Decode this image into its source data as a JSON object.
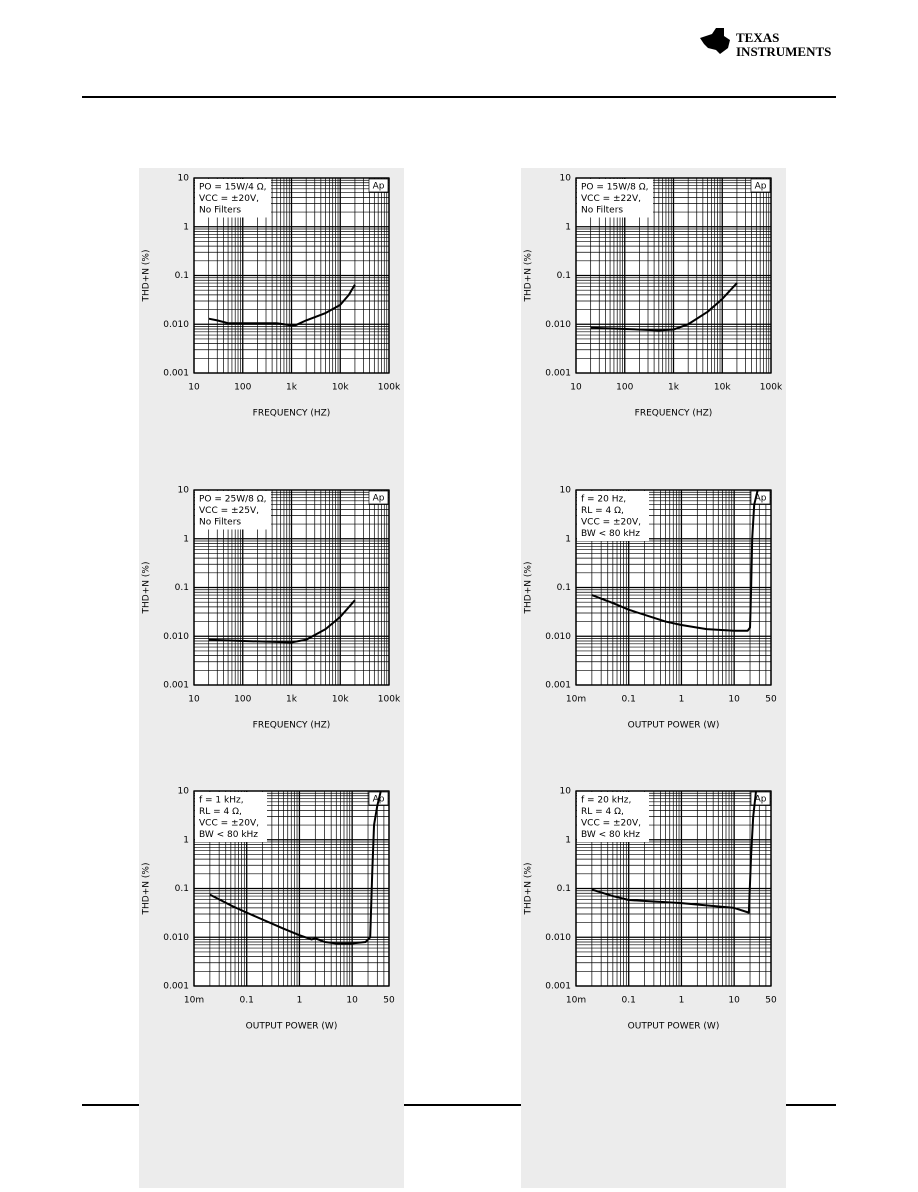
{
  "header": {
    "logo_line1": "Texas",
    "logo_line2": "Instruments"
  },
  "chart_data": [
    {
      "type": "line",
      "xlabel": "FREQUENCY (HZ)",
      "ylabel": "THD+N (%)",
      "log_x": true,
      "log_y": true,
      "grid": true,
      "minor_grid": true,
      "annotation": [
        "PO = 15W/4 Ω,",
        "VCC = ±20V,",
        "No Filters"
      ],
      "corner_label": "Ap",
      "xlim": [
        10,
        100000
      ],
      "ylim": [
        0.001,
        10
      ],
      "xticks": [
        10,
        100,
        {
          "value": 1000,
          "label": "1k"
        },
        {
          "value": 10000,
          "label": "10k"
        },
        {
          "value": 100000,
          "label": "100k"
        }
      ],
      "yticks": [
        0.001,
        {
          "value": 0.01,
          "label": "0.010"
        },
        0.1,
        1,
        10
      ],
      "series": [
        {
          "color": "#000000",
          "x": [
            20,
            30,
            50,
            100,
            200,
            500,
            1000,
            1200,
            2000,
            5000,
            10000,
            15000,
            20000
          ],
          "values": [
            0.013,
            0.012,
            0.0105,
            0.0105,
            0.0105,
            0.0105,
            0.0095,
            0.0095,
            0.012,
            0.017,
            0.025,
            0.04,
            0.065
          ]
        }
      ]
    },
    {
      "type": "line",
      "xlabel": "FREQUENCY (HZ)",
      "ylabel": "THD+N (%)",
      "log_x": true,
      "log_y": true,
      "grid": true,
      "minor_grid": true,
      "annotation": [
        "PO = 15W/8 Ω,",
        "VCC = ±22V,",
        "No Filters"
      ],
      "corner_label": "Ap",
      "xlim": [
        10,
        100000
      ],
      "ylim": [
        0.001,
        10
      ],
      "xticks": [
        10,
        100,
        {
          "value": 1000,
          "label": "1k"
        },
        {
          "value": 10000,
          "label": "10k"
        },
        {
          "value": 100000,
          "label": "100k"
        }
      ],
      "yticks": [
        0.001,
        {
          "value": 0.01,
          "label": "0.010"
        },
        0.1,
        1,
        10
      ],
      "series": [
        {
          "color": "#000000",
          "x": [
            20,
            100,
            500,
            1000,
            2000,
            5000,
            10000,
            20000
          ],
          "values": [
            0.0085,
            0.008,
            0.0075,
            0.0078,
            0.01,
            0.018,
            0.033,
            0.07
          ]
        }
      ]
    },
    {
      "type": "line",
      "xlabel": "FREQUENCY (HZ)",
      "ylabel": "THD+N (%)",
      "log_x": true,
      "log_y": true,
      "grid": true,
      "minor_grid": true,
      "annotation": [
        "PO = 25W/8 Ω,",
        "VCC = ±25V,",
        "No Filters"
      ],
      "corner_label": "Ap",
      "xlim": [
        10,
        100000
      ],
      "ylim": [
        0.001,
        10
      ],
      "xticks": [
        10,
        100,
        {
          "value": 1000,
          "label": "1k"
        },
        {
          "value": 10000,
          "label": "10k"
        },
        {
          "value": 100000,
          "label": "100k"
        }
      ],
      "yticks": [
        0.001,
        {
          "value": 0.01,
          "label": "0.010"
        },
        0.1,
        1,
        10
      ],
      "series": [
        {
          "color": "#000000",
          "x": [
            20,
            100,
            1000,
            2000,
            5000,
            10000,
            20000
          ],
          "values": [
            0.0085,
            0.008,
            0.0075,
            0.0085,
            0.014,
            0.025,
            0.055
          ]
        }
      ]
    },
    {
      "type": "line",
      "xlabel": "OUTPUT POWER (W)",
      "ylabel": "THD+N (%)",
      "log_x": true,
      "log_y": true,
      "grid": true,
      "minor_grid": true,
      "annotation": [
        "f = 20 Hz,",
        "RL = 4 Ω,",
        "VCC = ±20V,",
        "BW < 80 kHz"
      ],
      "corner_label": "Ap",
      "xlim": [
        0.01,
        50
      ],
      "ylim": [
        0.001,
        10
      ],
      "xticks": [
        {
          "value": 0.01,
          "label": "10m"
        },
        0.1,
        1,
        10,
        50
      ],
      "yticks": [
        0.001,
        {
          "value": 0.01,
          "label": "0.010"
        },
        0.1,
        1,
        10
      ],
      "series": [
        {
          "color": "#000000",
          "x": [
            0.02,
            0.05,
            0.1,
            0.5,
            1,
            3,
            10,
            18,
            20,
            21,
            22,
            24,
            28
          ],
          "values": [
            0.07,
            0.048,
            0.035,
            0.02,
            0.017,
            0.014,
            0.013,
            0.013,
            0.015,
            0.1,
            1,
            5,
            10
          ]
        }
      ]
    },
    {
      "type": "line",
      "xlabel": "OUTPUT POWER (W)",
      "ylabel": "THD+N (%)",
      "log_x": true,
      "log_y": true,
      "grid": true,
      "minor_grid": true,
      "annotation": [
        "f = 1 kHz,",
        "RL = 4 Ω,",
        "VCC = ±20V,",
        "BW < 80 kHz"
      ],
      "corner_label": "Ap",
      "xlim": [
        0.01,
        50
      ],
      "ylim": [
        0.001,
        10
      ],
      "xticks": [
        {
          "value": 0.01,
          "label": "10m"
        },
        0.1,
        1,
        10,
        50
      ],
      "yticks": [
        0.001,
        {
          "value": 0.01,
          "label": "0.010"
        },
        0.1,
        1,
        10
      ],
      "series": [
        {
          "color": "#000000",
          "x": [
            0.02,
            0.05,
            0.1,
            0.5,
            1,
            1.7,
            2,
            3,
            5,
            10,
            18,
            22,
            24,
            26,
            30,
            35
          ],
          "values": [
            0.075,
            0.045,
            0.032,
            0.015,
            0.011,
            0.009,
            0.0095,
            0.008,
            0.0075,
            0.0075,
            0.008,
            0.01,
            0.2,
            2,
            5,
            10
          ]
        }
      ]
    },
    {
      "type": "line",
      "xlabel": "OUTPUT POWER (W)",
      "ylabel": "THD+N (%)",
      "log_x": true,
      "log_y": true,
      "grid": true,
      "minor_grid": true,
      "annotation": [
        "f = 20 kHz,",
        "RL = 4 Ω,",
        "VCC = ±20V,",
        "BW < 80 kHz"
      ],
      "corner_label": "Ap",
      "xlim": [
        0.01,
        50
      ],
      "ylim": [
        0.001,
        10
      ],
      "xticks": [
        {
          "value": 0.01,
          "label": "10m"
        },
        0.1,
        1,
        10,
        50
      ],
      "yticks": [
        0.001,
        {
          "value": 0.01,
          "label": "0.010"
        },
        0.1,
        1,
        10
      ],
      "series": [
        {
          "color": "#000000",
          "x": [
            0.02,
            0.05,
            0.1,
            1,
            10,
            19,
            21,
            23,
            26
          ],
          "values": [
            0.095,
            0.07,
            0.058,
            0.05,
            0.04,
            0.032,
            0.5,
            3,
            10
          ]
        }
      ]
    }
  ]
}
